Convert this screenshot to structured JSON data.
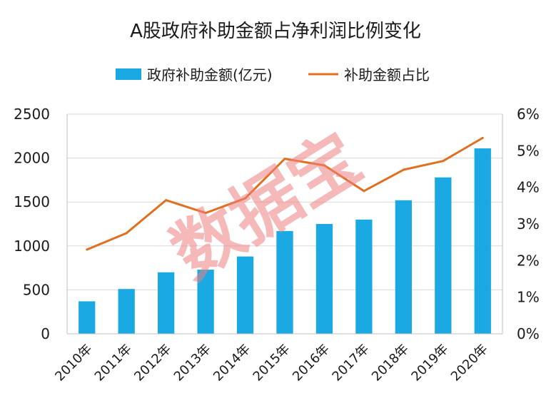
{
  "colors": {
    "bar": "#1aa9e3",
    "line": "#e07020",
    "grid": "#d9d9d9",
    "axis": "#bfbfbf",
    "watermark": "#f08080"
  },
  "watermark": "数据宝",
  "chart_data": {
    "type": "bar",
    "title": "A股政府补助金额占净利润比例变化",
    "legend_position": "top",
    "grid": true,
    "categories": [
      "2010年",
      "2011年",
      "2012年",
      "2013年",
      "2014年",
      "2015年",
      "2016年",
      "2017年",
      "2018年",
      "2019年",
      "2020年"
    ],
    "series": [
      {
        "name": "政府补助金额(亿元)",
        "type": "bar",
        "axis": "left",
        "values": [
          370,
          510,
          700,
          730,
          880,
          1170,
          1250,
          1300,
          1520,
          1780,
          2110
        ]
      },
      {
        "name": "补助金额占比",
        "type": "line",
        "axis": "right",
        "values": [
          2.3,
          2.75,
          3.65,
          3.3,
          3.7,
          4.78,
          4.6,
          3.9,
          4.48,
          4.72,
          5.35
        ]
      }
    ],
    "ylim_left": [
      0,
      2500
    ],
    "yticks_left": [
      "0",
      "500",
      "1000",
      "1500",
      "2000",
      "2500"
    ],
    "ylim_right": [
      0,
      6
    ],
    "yticks_right": [
      "0%",
      "1%",
      "2%",
      "3%",
      "4%",
      "5%",
      "6%"
    ]
  }
}
